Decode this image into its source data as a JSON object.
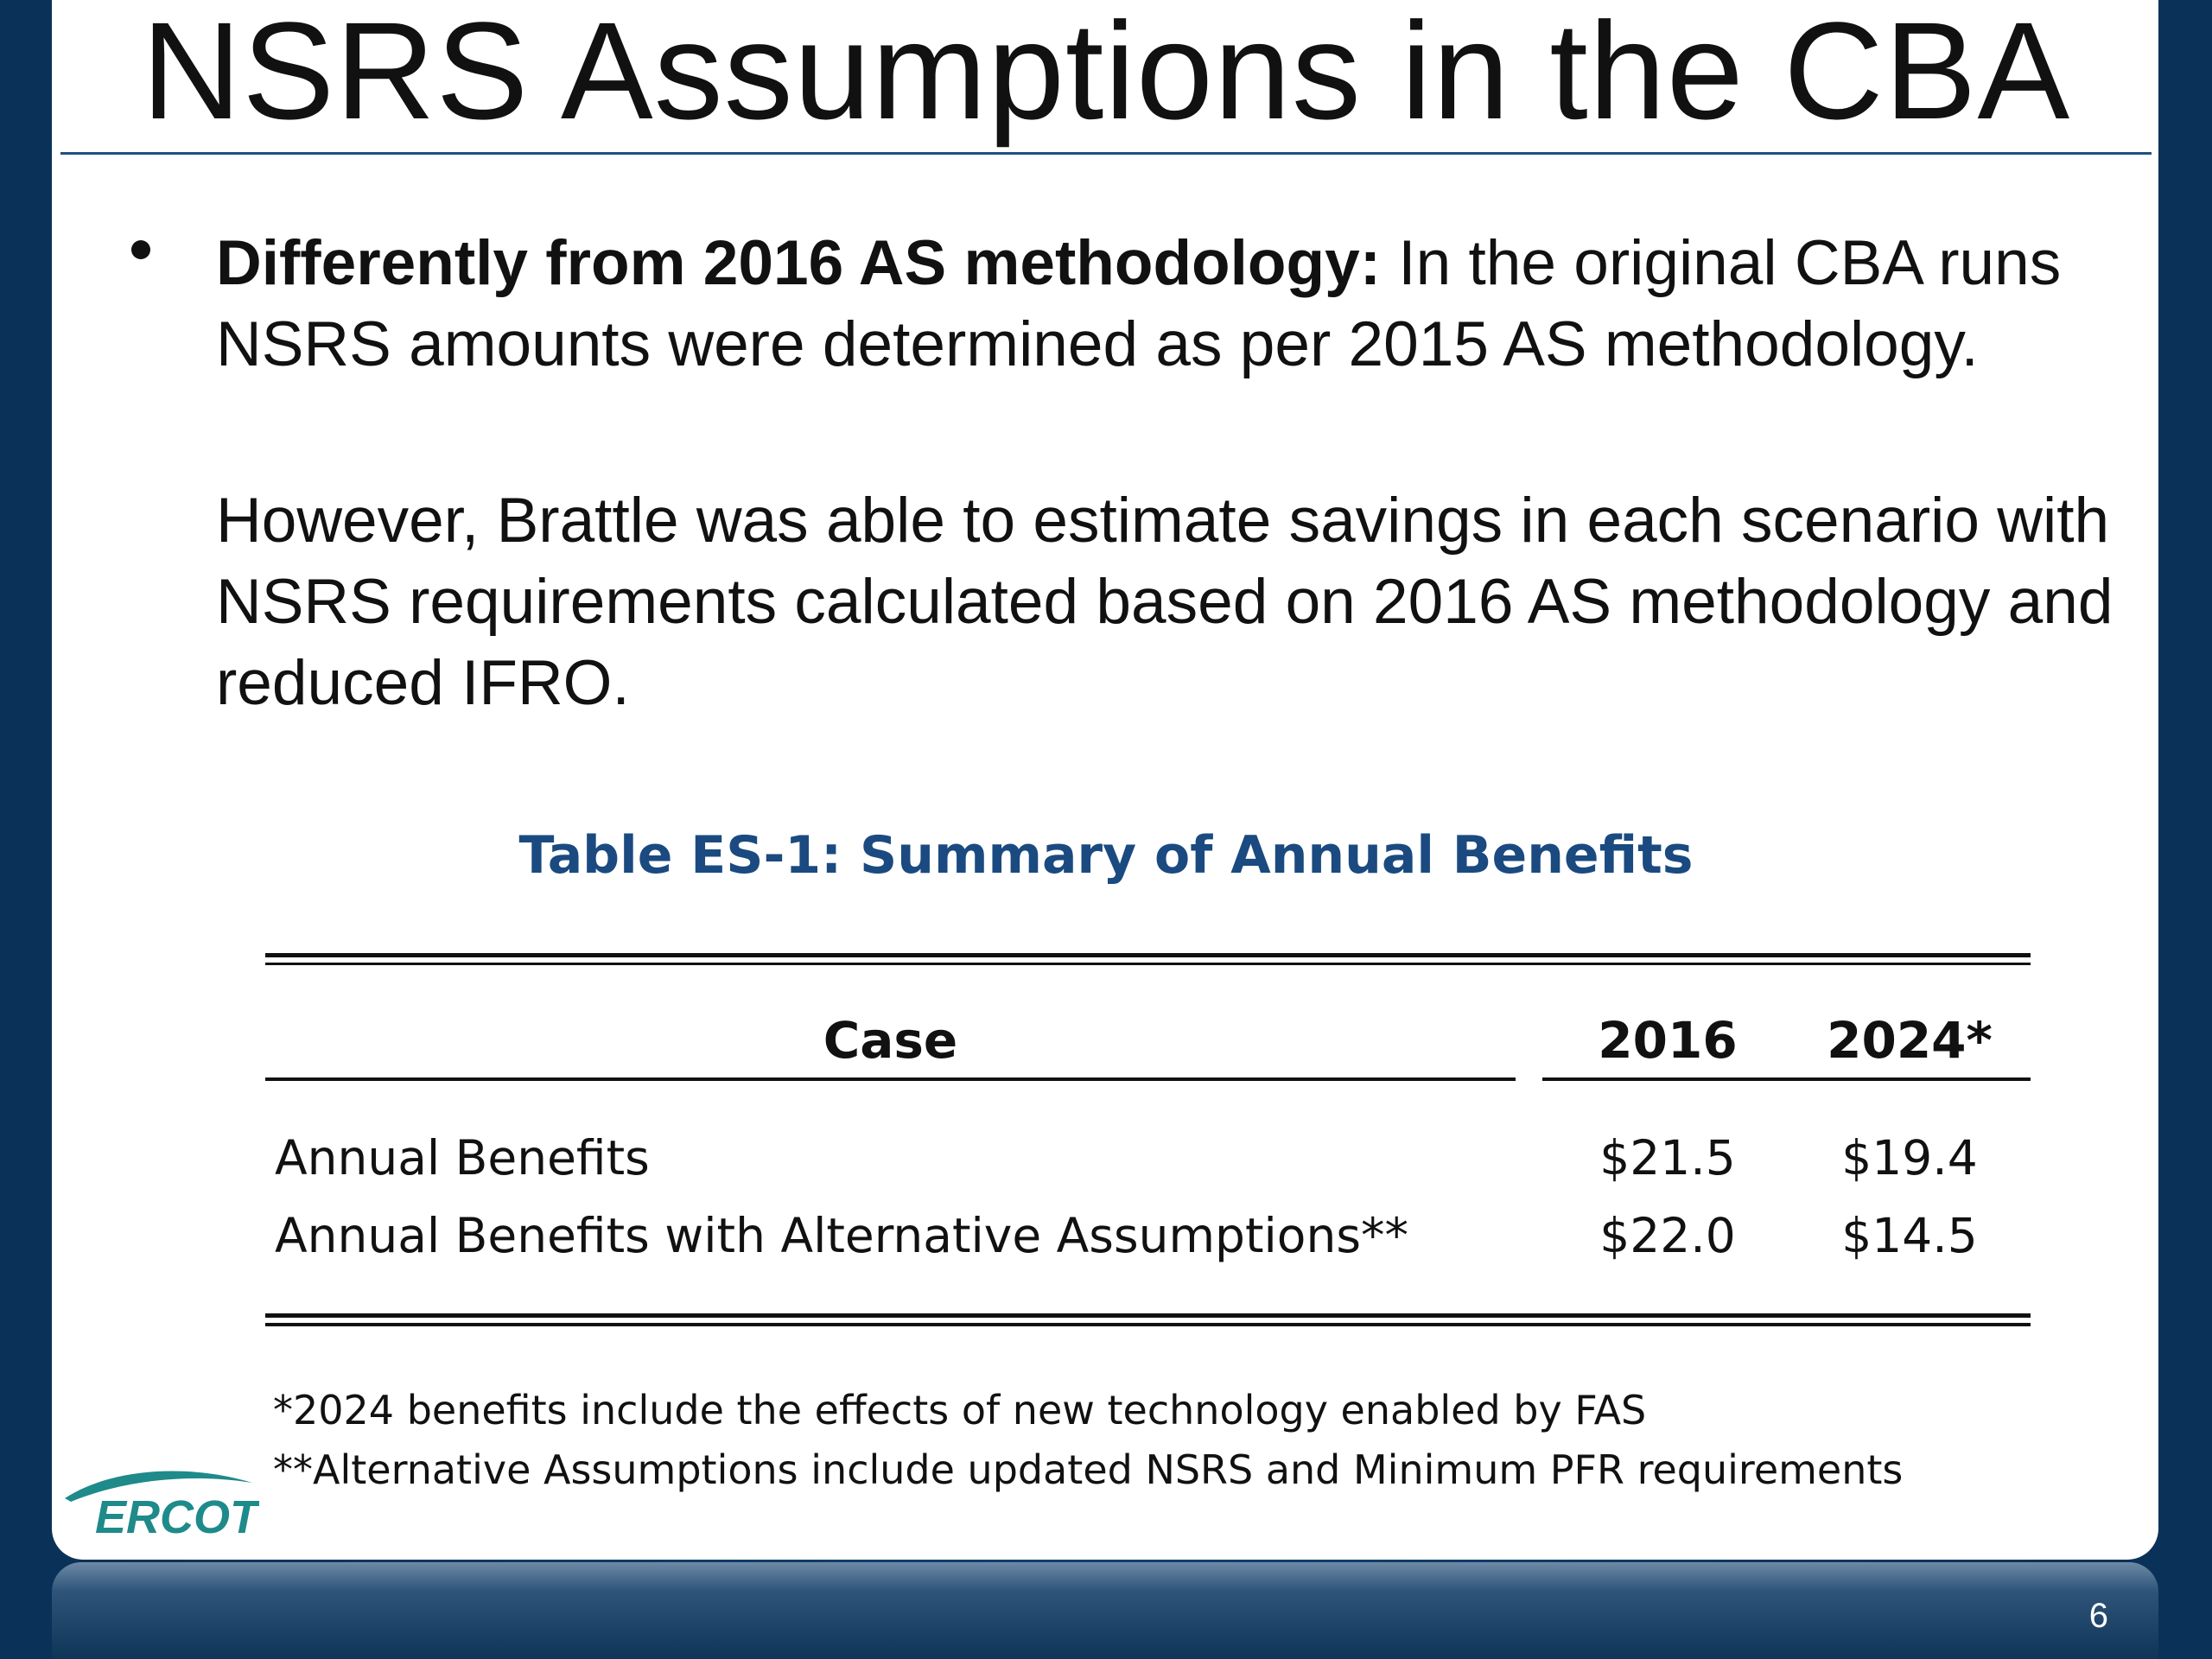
{
  "slide": {
    "title": "NSRS Assumptions in the CBA",
    "paragraph1_bold": "Differently from 2016 AS methodology:",
    "paragraph1_rest": " In the original CBA runs NSRS amounts were determined as per 2015 AS methodology.",
    "paragraph2": "However, Brattle was able to estimate savings in each scenario with NSRS requirements calculated based on 2016 AS methodology and reduced IFRO.",
    "page_number": "6"
  },
  "table": {
    "caption": "Table ES-1: Summary of Annual Benefits",
    "headers": [
      "Case",
      "2016",
      "2024*"
    ],
    "rows": [
      [
        "Annual Benefits",
        "$21.5",
        "$19.4"
      ],
      [
        "Annual Benefits with Alternative Assumptions**",
        "$22.0",
        "$14.5"
      ]
    ],
    "footnotes": [
      "*2024 benefits include the effects of new technology enabled by FAS",
      "**Alternative Assumptions include updated NSRS and Minimum PFR requirements"
    ]
  },
  "logo": {
    "text": "ERCOT",
    "color": "#1f8a8a"
  },
  "colors": {
    "frame": "#0c3a63",
    "caption": "#1a4a80",
    "title_rule": "#1f4f7f"
  }
}
